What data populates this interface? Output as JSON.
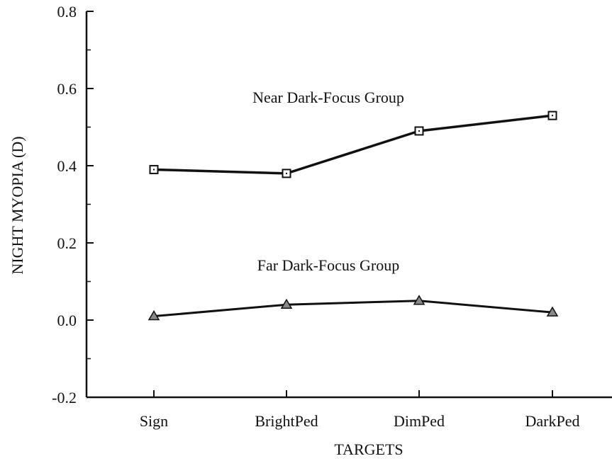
{
  "chart_data": {
    "type": "line",
    "title": "",
    "xlabel": "TARGETS",
    "ylabel": "NIGHT MYOPIA (D)",
    "categories": [
      "Sign",
      "BrightPed",
      "DimPed",
      "DarkPed"
    ],
    "ylim": [
      -0.2,
      0.8
    ],
    "yticks": [
      -0.2,
      0.0,
      0.2,
      0.4,
      0.6,
      0.8
    ],
    "ytick_labels": [
      "-0.2",
      "0.0",
      "0.2",
      "0.4",
      "0.6",
      "0.8"
    ],
    "grid": false,
    "legend": "none",
    "series": [
      {
        "marker": "square",
        "color": "#111111",
        "values": [
          0.39,
          0.38,
          0.49,
          0.53
        ]
      },
      {
        "marker": "triangle",
        "color": "#111111",
        "values": [
          0.01,
          0.04,
          0.05,
          0.02
        ]
      }
    ],
    "annotations": [
      {
        "text": "Near Dark-Focus Group",
        "series_index": 0
      },
      {
        "text": "Far Dark-Focus Group",
        "series_index": 1
      }
    ]
  }
}
